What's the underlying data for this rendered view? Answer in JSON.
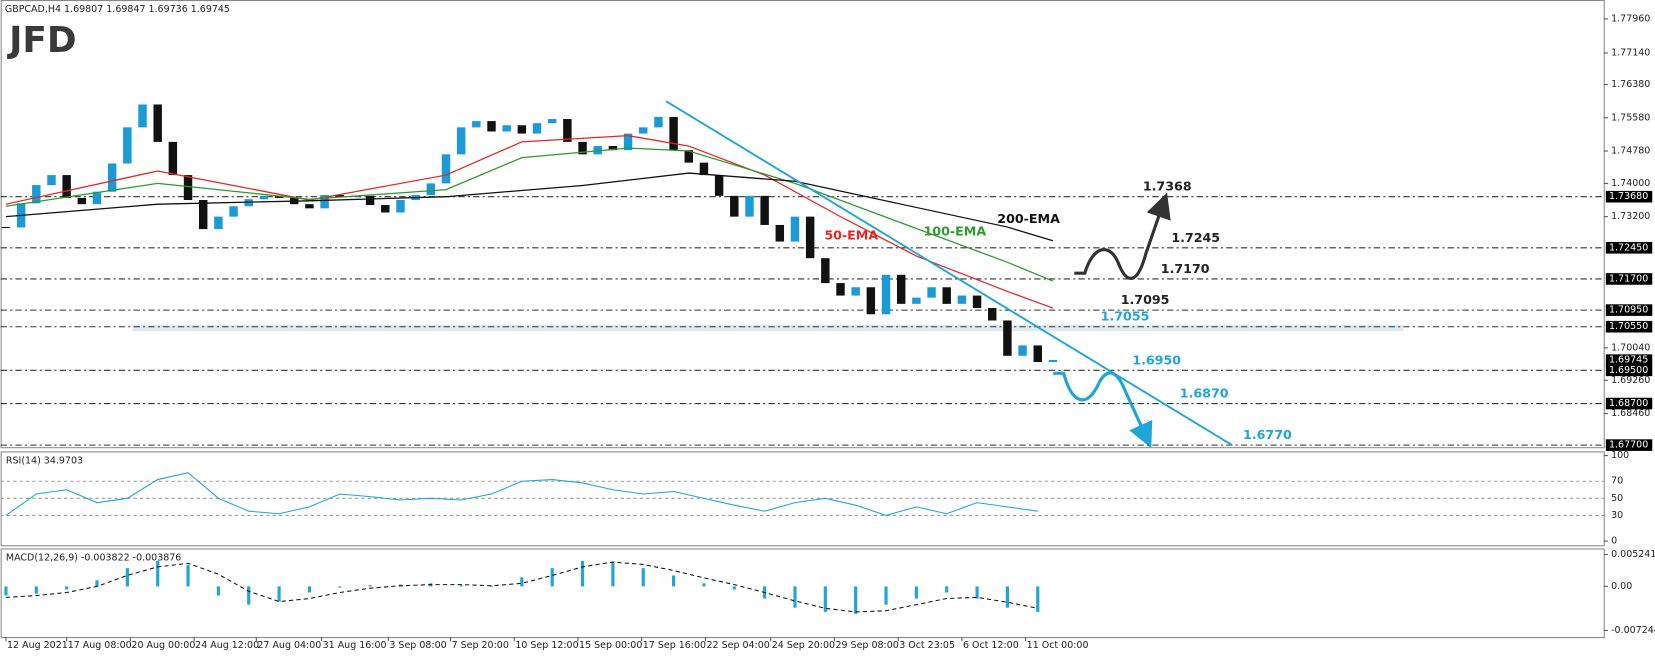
{
  "header": {
    "symbol_info": "GBPCAD,H4 1.69807 1.69847 1.69736 1.69745",
    "logo": "JFD"
  },
  "chart_data": [
    {
      "type": "candlestick",
      "xlim": [
        -0.35,
        105.3
      ],
      "ylim": [
        1.6765,
        1.7839
      ],
      "x_labels": [
        {
          "value": 0,
          "label": "12 Aug 2021"
        },
        {
          "value": 4,
          "label": "17 Aug 08:00"
        },
        {
          "value": 8.2,
          "label": "20 Aug 00:00"
        },
        {
          "value": 12.4,
          "label": "24 Aug 12:00"
        },
        {
          "value": 16.5,
          "label": "27 Aug 04:00"
        },
        {
          "value": 20.8,
          "label": "31 Aug 16:00"
        },
        {
          "value": 25.2,
          "label": "3 Sep 08:00"
        },
        {
          "value": 29.3,
          "label": "7 Sep 20:00"
        },
        {
          "value": 33.5,
          "label": "10 Sep 12:00"
        },
        {
          "value": 37.7,
          "label": "15 Sep 00:00"
        },
        {
          "value": 41.9,
          "label": "17 Sep 16:00"
        },
        {
          "value": 46.1,
          "label": "22 Sep 04:00"
        },
        {
          "value": 50.4,
          "label": "24 Sep 20:00"
        },
        {
          "value": 54.6,
          "label": "29 Sep 08:00"
        },
        {
          "value": 58.8,
          "label": "3 Oct 23:05"
        },
        {
          "value": 63,
          "label": "6 Oct 12:00"
        },
        {
          "value": 67.2,
          "label": "11 Oct 00:00"
        }
      ],
      "yticks": [
        {
          "value": 1.7796,
          "label": "1.77960"
        },
        {
          "value": 1.7714,
          "label": "1.77140"
        },
        {
          "value": 1.7638,
          "label": "1.76380"
        },
        {
          "value": 1.7558,
          "label": "1.75580"
        },
        {
          "value": 1.7478,
          "label": "1.74780"
        },
        {
          "value": 1.74,
          "label": "1.74000"
        },
        {
          "value": 1.732,
          "label": "1.73200"
        },
        {
          "value": 1.7004,
          "label": "1.70040"
        },
        {
          "value": 1.6926,
          "label": "1.69260"
        },
        {
          "value": 1.6846,
          "label": "1.68460"
        }
      ],
      "close": [
        1.7294,
        1.7352,
        1.7396,
        1.742,
        1.7365,
        1.735,
        1.738,
        1.7448,
        1.7535,
        1.759,
        1.75,
        1.742,
        1.736,
        1.729,
        1.732,
        1.7345,
        1.7362,
        1.737,
        1.7365,
        1.735,
        1.734,
        1.7372,
        1.7368,
        1.737,
        1.7348,
        1.733,
        1.736,
        1.7372,
        1.74,
        1.747,
        1.7535,
        1.755,
        1.7525,
        1.754,
        1.752,
        1.7545,
        1.7555,
        1.75,
        1.747,
        1.749,
        1.748,
        1.752,
        1.7535,
        1.756,
        1.748,
        1.745,
        1.742,
        1.737,
        1.732,
        1.737,
        1.73,
        1.726,
        1.732,
        1.722,
        1.716,
        1.713,
        1.715,
        1.7085,
        1.718,
        1.711,
        1.7125,
        1.715,
        1.711,
        1.713,
        1.71,
        1.707,
        1.6985,
        1.701,
        1.697,
        1.6975
      ],
      "up_color": "#1a9ad6",
      "down_color": "#111111",
      "series": [
        {
          "name": "50-EMA",
          "color": "#e8251f",
          "x": [
            0,
            10,
            20,
            29,
            34,
            41,
            45,
            50,
            55,
            60,
            66,
            69
          ],
          "values": [
            1.735,
            1.743,
            1.736,
            1.742,
            1.75,
            1.7515,
            1.749,
            1.742,
            1.732,
            1.7225,
            1.714,
            1.71
          ]
        },
        {
          "name": "100-EMA",
          "color": "#2e9a2e",
          "x": [
            0,
            10,
            20,
            29,
            34,
            41,
            45,
            52,
            59,
            66,
            69
          ],
          "values": [
            1.7345,
            1.74,
            1.7362,
            1.7385,
            1.7462,
            1.7485,
            1.7478,
            1.74,
            1.7305,
            1.721,
            1.7165
          ]
        },
        {
          "name": "200-EMA",
          "color": "#111111",
          "x": [
            0,
            10,
            20,
            29,
            38,
            45,
            52,
            59,
            66,
            69
          ],
          "values": [
            1.732,
            1.735,
            1.7358,
            1.7368,
            1.7395,
            1.7425,
            1.7405,
            1.735,
            1.7295,
            1.7262
          ]
        }
      ],
      "levels": [
        {
          "value": 1.7368,
          "label": "1.7368",
          "color": "#222222"
        },
        {
          "value": 1.7245,
          "label": "1.7245",
          "color": "#222222"
        },
        {
          "value": 1.717,
          "label": "1.7170",
          "color": "#222222"
        },
        {
          "value": 1.7095,
          "label": "1.7095",
          "color": "#222222"
        },
        {
          "value": 1.7055,
          "label": "1.7055",
          "color": "#1ea7d6"
        },
        {
          "value": 1.695,
          "label": "1.6950",
          "color": "#1ea7d6"
        },
        {
          "value": 1.687,
          "label": "1.6870",
          "color": "#1ea7d6"
        },
        {
          "value": 1.677,
          "label": "1.6770",
          "color": "#1ea7d6"
        }
      ],
      "price_boxes": [
        {
          "value": 1.7368,
          "label": "1.73680"
        },
        {
          "value": 1.7245,
          "label": "1.72450"
        },
        {
          "value": 1.717,
          "label": "1.71700"
        },
        {
          "value": 1.7095,
          "label": "1.70950"
        },
        {
          "value": 1.7055,
          "label": "1.70550"
        },
        {
          "value": 1.69745,
          "label": "1.69745"
        },
        {
          "value": 1.695,
          "label": "1.69500"
        },
        {
          "value": 1.687,
          "label": "1.68700"
        },
        {
          "value": 1.677,
          "label": "1.67700"
        }
      ],
      "trendline": {
        "color": "#1ea7d6",
        "x": [
          43.5,
          80.8
        ],
        "values": [
          1.7598,
          1.677
        ]
      }
    },
    {
      "type": "line",
      "title": "RSI(14) 34.9703",
      "color": "#1ea7d6",
      "ylim": [
        -4.9,
        104.9
      ],
      "yticks": [
        0,
        30,
        50,
        70,
        100
      ],
      "x": [
        0,
        2,
        4,
        6,
        8,
        10,
        12,
        14,
        16,
        18,
        20,
        22,
        24,
        26,
        28,
        30,
        32,
        34,
        36,
        38,
        40,
        42,
        44,
        46,
        48,
        50,
        52,
        54,
        56,
        58,
        60,
        62,
        64,
        66,
        68
      ],
      "values": [
        30,
        55,
        60,
        45,
        50,
        72,
        80,
        50,
        35,
        32,
        40,
        55,
        52,
        48,
        50,
        48,
        55,
        70,
        72,
        68,
        60,
        55,
        58,
        50,
        42,
        35,
        45,
        50,
        42,
        30,
        40,
        32,
        45,
        40,
        35
      ]
    },
    {
      "type": "macd",
      "title": "MACD(12,26,9) -0.003822 -0.003876",
      "color": "#1ea7d6",
      "signal_color": "#111111",
      "ylim": [
        -0.00832,
        0.00624
      ],
      "yticks": [
        0.005241,
        {
          "value": 0,
          "label": "0.00"
        },
        -0.007244
      ],
      "x": [
        0,
        2,
        4,
        6,
        8,
        10,
        12,
        14,
        16,
        18,
        20,
        22,
        24,
        26,
        28,
        30,
        32,
        34,
        36,
        38,
        40,
        42,
        44,
        46,
        48,
        50,
        52,
        54,
        56,
        58,
        60,
        62,
        64,
        66,
        68
      ],
      "histogram": [
        -0.0015,
        -0.0012,
        -0.0005,
        0.001,
        0.003,
        0.0042,
        0.0035,
        -0.0015,
        -0.003,
        -0.0025,
        -0.001,
        -0.0002,
        0.0002,
        0.0003,
        0.0005,
        0.0002,
        -0.0001,
        0.0015,
        0.003,
        0.0042,
        0.004,
        0.003,
        0.0018,
        0.0005,
        -0.0005,
        -0.002,
        -0.0035,
        -0.0042,
        -0.0045,
        -0.003,
        -0.002,
        -0.001,
        -0.002,
        -0.0035,
        -0.0042
      ],
      "signal": [
        -0.0018,
        -0.0015,
        -0.001,
        0,
        0.0018,
        0.0032,
        0.0038,
        0.002,
        -0.0008,
        -0.0025,
        -0.002,
        -0.001,
        -0.0003,
        0.0001,
        0.0003,
        0.0003,
        0.0001,
        0.0005,
        0.0018,
        0.0032,
        0.004,
        0.0036,
        0.0026,
        0.0014,
        0.0003,
        -0.001,
        -0.0024,
        -0.0036,
        -0.0042,
        -0.004,
        -0.003,
        -0.002,
        -0.0018,
        -0.0026,
        -0.0036
      ]
    }
  ]
}
